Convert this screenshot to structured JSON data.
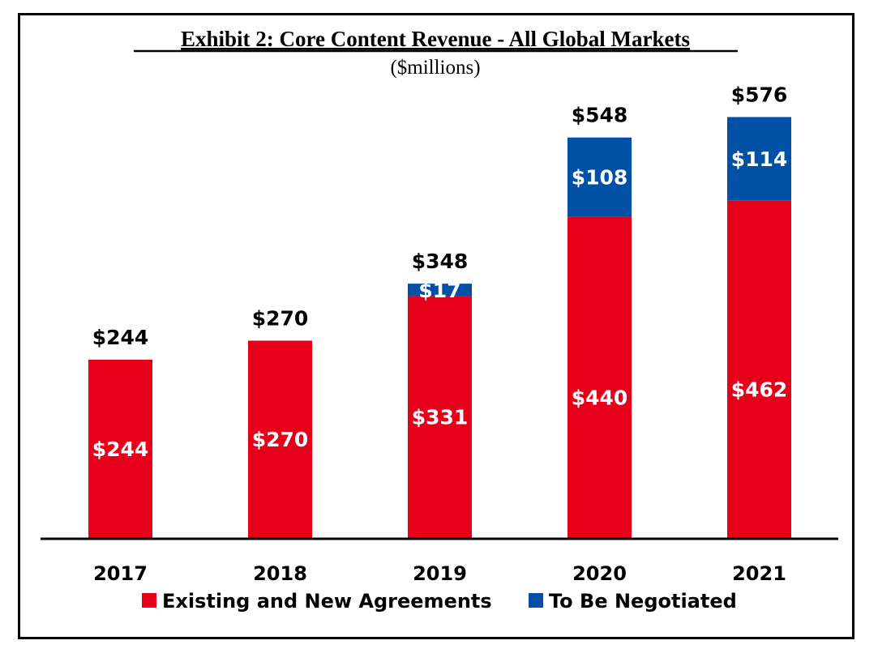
{
  "chart_data": {
    "type": "bar",
    "stacked": true,
    "title": "Exhibit 2: Core Content Revenue - All Global Markets",
    "subtitle": "($millions)",
    "xlabel": "",
    "ylabel": "",
    "ylim": [
      0,
      600
    ],
    "grid": false,
    "legend_position": "bottom",
    "categories": [
      "2017",
      "2018",
      "2019",
      "2020",
      "2021"
    ],
    "series": [
      {
        "name": "Existing and New Agreements",
        "color": "#E6001A",
        "values": [
          244,
          270,
          331,
          440,
          462
        ],
        "labels": [
          "$244",
          "$270",
          "$331",
          "$440",
          "$462"
        ]
      },
      {
        "name": "To Be Negotiated",
        "color": "#0051A5",
        "values": [
          0,
          0,
          17,
          108,
          114
        ],
        "labels": [
          "",
          "",
          "$17",
          "$108",
          "$114"
        ]
      }
    ],
    "totals": [
      244,
      270,
      348,
      548,
      576
    ],
    "total_labels": [
      "$244",
      "$270",
      "$348",
      "$548",
      "$576"
    ]
  }
}
